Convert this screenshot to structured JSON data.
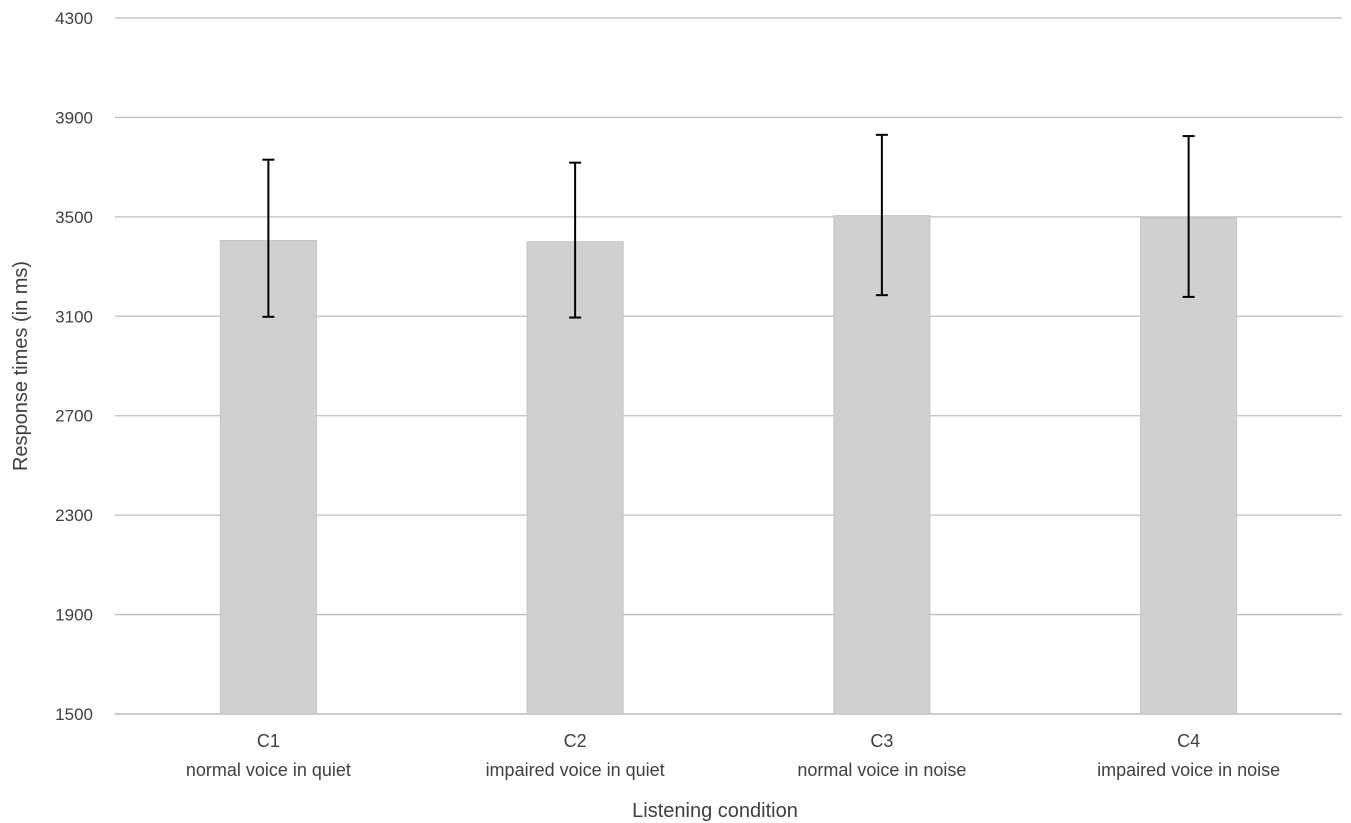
{
  "chart_data": {
    "type": "bar",
    "title": "",
    "xlabel": "Listening condition",
    "ylabel": "Response times (in ms)",
    "ylim": [
      1500,
      4300
    ],
    "yticks": [
      1500,
      1900,
      2300,
      2700,
      3100,
      3500,
      3900,
      4300
    ],
    "grid": true,
    "categories": [
      {
        "code": "C1",
        "desc": "normal voice in quiet"
      },
      {
        "code": "C2",
        "desc": "impaired voice in quiet"
      },
      {
        "code": "C3",
        "desc": "normal voice in noise"
      },
      {
        "code": "C4",
        "desc": "impaired voice in noise"
      }
    ],
    "series": [
      {
        "values": [
          3405,
          3400,
          3505,
          3495
        ],
        "error_upper": [
          3730,
          3718,
          3830,
          3825
        ],
        "error_lower": [
          3098,
          3095,
          3185,
          3178
        ]
      }
    ],
    "colors": {
      "bar": "#d0d0d0",
      "grid": "#bfbfbf",
      "axis": "#bfbfbf",
      "error_bar": "#000000",
      "text": "#404040"
    }
  }
}
